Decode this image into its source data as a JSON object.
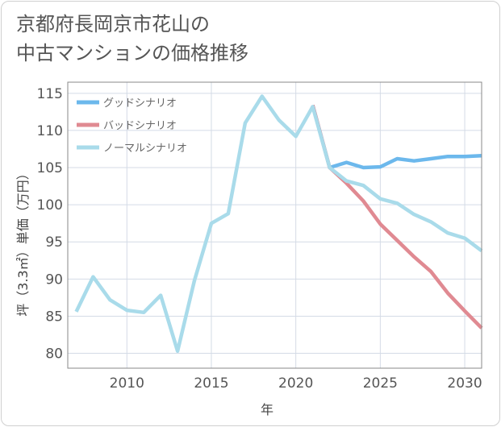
{
  "title_line1": "京都府長岡京市花山の",
  "title_line2": "中古マンションの価格推移",
  "chart_data": {
    "type": "line",
    "xlabel": "年",
    "ylabel": "坪（3.3㎡）単価（万円）",
    "xlim": [
      2006.5,
      2031
    ],
    "ylim": [
      78,
      116.5
    ],
    "x_ticks": [
      2010,
      2015,
      2020,
      2025,
      2030
    ],
    "y_ticks": [
      80,
      85,
      90,
      95,
      100,
      105,
      110,
      115
    ],
    "grid": true,
    "legend_position": "top-left",
    "series": [
      {
        "name": "グッドシナリオ",
        "color": "#6cb8ec",
        "x": [
          2021,
          2022,
          2023,
          2024,
          2025,
          2026,
          2027,
          2028,
          2029,
          2030,
          2031
        ],
        "values": [
          113.4,
          105.0,
          105.7,
          105.0,
          105.1,
          106.2,
          105.9,
          106.2,
          106.5,
          106.5,
          106.6
        ]
      },
      {
        "name": "バッドシナリオ",
        "color": "#e08a92",
        "x": [
          2021,
          2022,
          2023,
          2024,
          2025,
          2026,
          2027,
          2028,
          2029,
          2030,
          2031
        ],
        "values": [
          113.4,
          105.0,
          102.9,
          100.5,
          97.4,
          95.2,
          93.0,
          91.0,
          88.1,
          85.7,
          83.4
        ]
      },
      {
        "name": "ノーマルシナリオ",
        "color": "#a9dbea",
        "x": [
          2007,
          2008,
          2009,
          2010,
          2011,
          2012,
          2013,
          2014,
          2015,
          2016,
          2017,
          2018,
          2019,
          2020,
          2021,
          2022,
          2023,
          2024,
          2025,
          2026,
          2027,
          2028,
          2029,
          2030,
          2031
        ],
        "values": [
          85.6,
          90.3,
          87.2,
          85.8,
          85.5,
          87.8,
          80.3,
          89.8,
          97.5,
          98.8,
          111.0,
          114.6,
          111.4,
          109.2,
          113.2,
          105.0,
          103.2,
          102.6,
          100.8,
          100.2,
          98.7,
          97.7,
          96.2,
          95.5,
          93.8
        ]
      }
    ]
  }
}
